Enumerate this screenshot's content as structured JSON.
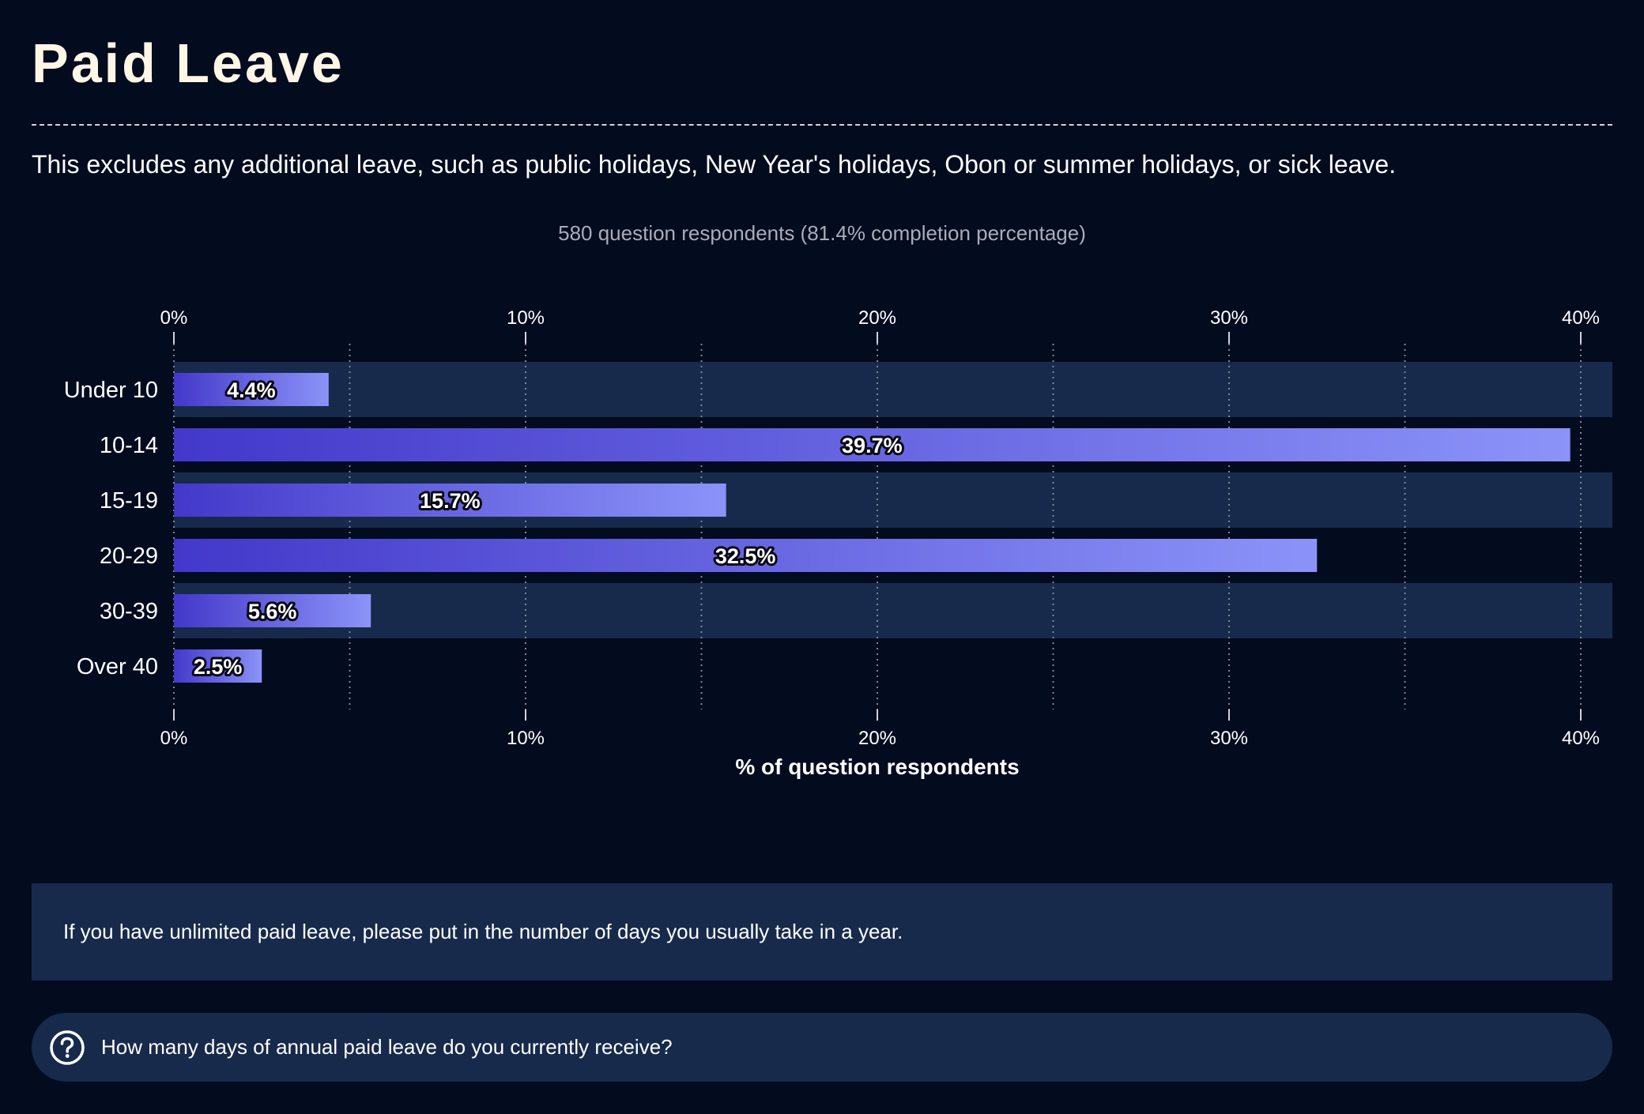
{
  "header": {
    "title": "Paid Leave",
    "description": "This excludes any additional leave, such as public holidays, New Year's holidays, Obon or summer holidays, or sick leave."
  },
  "summary": {
    "respondents": "580 question respondents (81.4% completion percentage)"
  },
  "chart_data": {
    "type": "bar",
    "orientation": "horizontal",
    "categories": [
      "Under 10",
      "10-14",
      "15-19",
      "20-29",
      "30-39",
      "Over 40"
    ],
    "values": [
      4.4,
      39.7,
      15.7,
      32.5,
      5.6,
      2.5
    ],
    "value_labels": [
      "4.4%",
      "39.7%",
      "15.7%",
      "32.5%",
      "5.6%",
      "2.5%"
    ],
    "xlabel": "% of question respondents",
    "xlim": [
      0,
      40
    ],
    "x_ticks": [
      0,
      10,
      20,
      30,
      40
    ],
    "x_tick_labels": [
      "0%",
      "10%",
      "20%",
      "30%",
      "40%"
    ],
    "axis_position": "top and bottom",
    "grid": true,
    "colors": {
      "bar_start": "#4338ca",
      "bar_end": "#8b93f8",
      "row_band": "#172a4b",
      "grid": "#7d8799"
    }
  },
  "note": {
    "text": "If you have unlimited paid leave, please put in the number of days you usually take in a year."
  },
  "question": {
    "icon": "question-circle-icon",
    "text": "How many days of annual paid leave do you currently receive?"
  }
}
